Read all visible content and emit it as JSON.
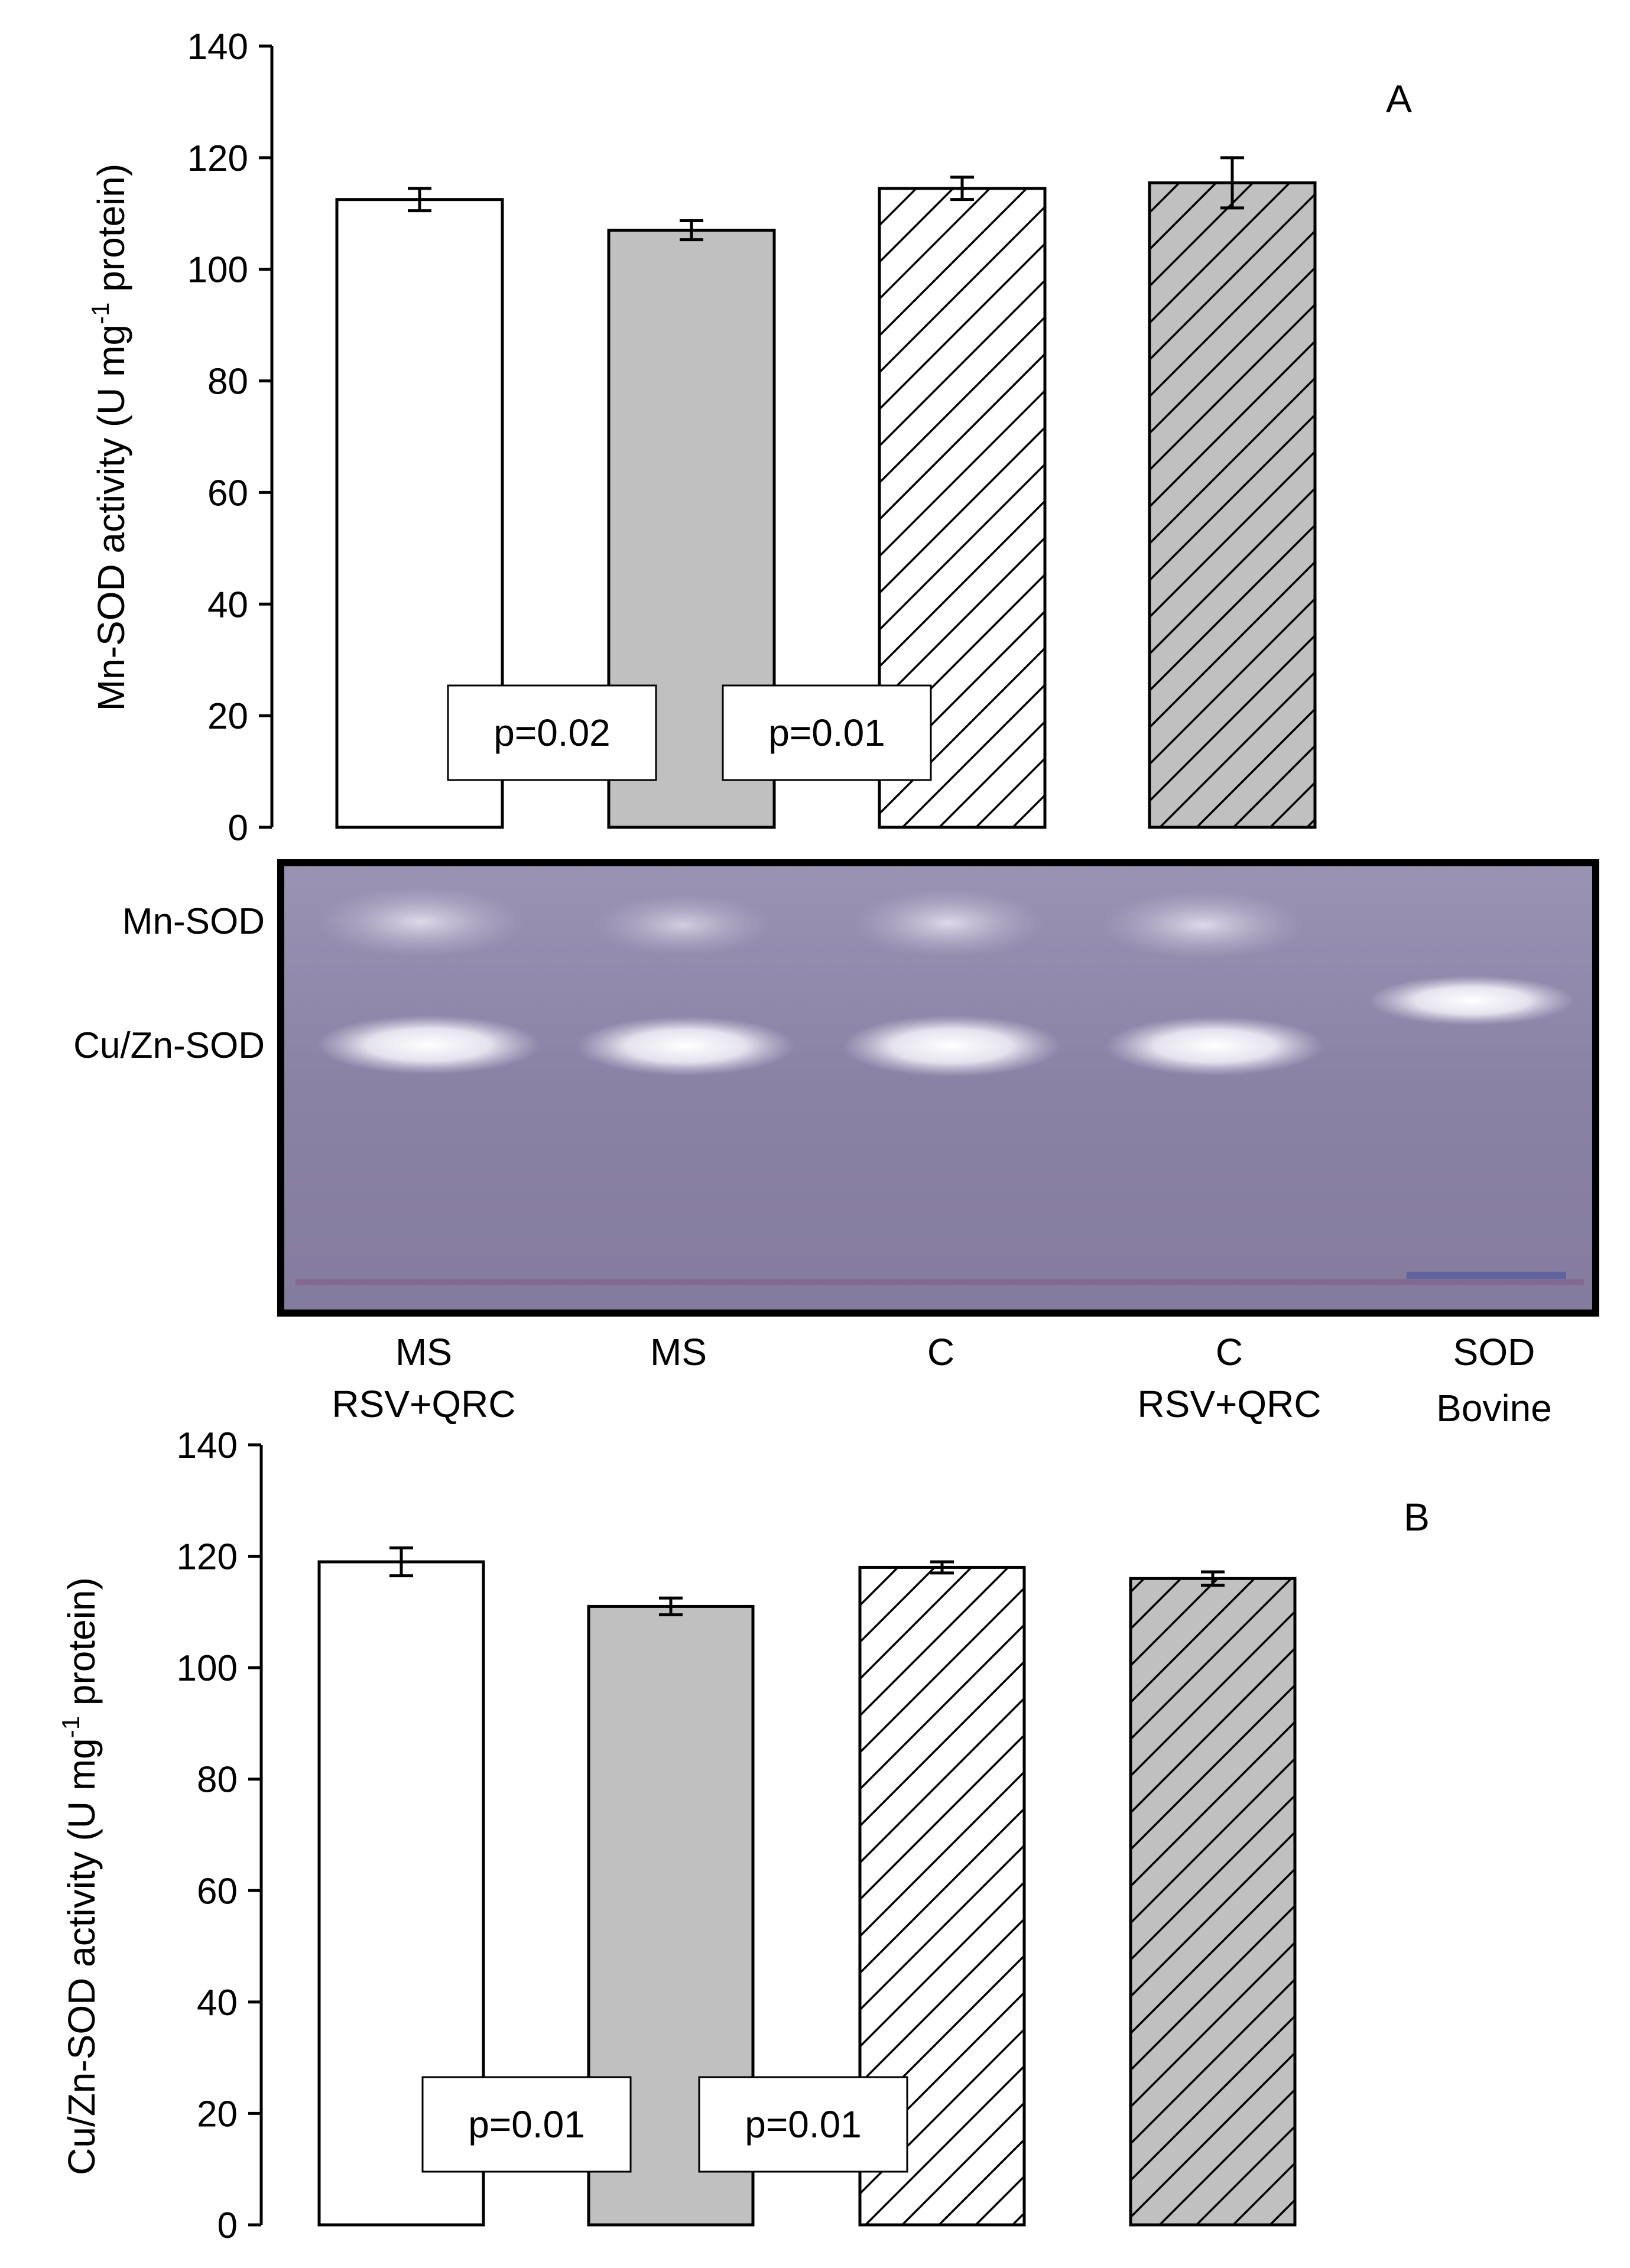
{
  "chart_data": [
    {
      "type": "bar",
      "panel_label": "A",
      "categories": [
        "MS RSV+QRC",
        "MS",
        "C",
        "C RSV+QRC"
      ],
      "values": [
        112.5,
        107,
        114.5,
        115.5
      ],
      "errors": [
        2,
        1.7,
        2,
        4.5
      ],
      "fills": [
        "#ffffff",
        "#c0c0c0",
        "hatch-white",
        "hatch-gray"
      ],
      "ylabel_main": "Mn-SOD activity (U mg",
      "ylabel_sup": "-1",
      "ylabel_end": " protein)",
      "ylim": [
        0,
        140
      ],
      "yticks": [
        0,
        20,
        40,
        60,
        80,
        100,
        120,
        140
      ],
      "annotations": [
        "p=0.02",
        "p=0.01"
      ],
      "grid": false
    },
    {
      "type": "bar",
      "panel_label": "B",
      "categories": [
        "MS RSV+QRC",
        "MS",
        "C",
        "C RSV+QRC"
      ],
      "values": [
        119,
        111,
        118,
        116
      ],
      "errors": [
        2.5,
        1.5,
        1,
        1.2
      ],
      "fills": [
        "#ffffff",
        "#c0c0c0",
        "hatch-white",
        "hatch-gray"
      ],
      "ylabel_main": "Cu/Zn-SOD activity (U mg",
      "ylabel_sup": "-1",
      "ylabel_end": " protein)",
      "ylim": [
        0,
        140
      ],
      "yticks": [
        0,
        20,
        40,
        60,
        80,
        100,
        120,
        140
      ],
      "annotations": [
        "p=0.01",
        "p=0.01"
      ],
      "grid": false
    }
  ],
  "gel": {
    "band_labels": [
      "Mn-SOD",
      "Cu/Zn-SOD"
    ],
    "lanes": [
      {
        "line1": "MS",
        "line2": "RSV+QRC"
      },
      {
        "line1": "MS",
        "line2": ""
      },
      {
        "line1": "C",
        "line2": ""
      },
      {
        "line1": "C",
        "line2": "RSV+QRC"
      },
      {
        "line1": "SOD",
        "line2": "Bovine"
      }
    ]
  },
  "colors": {
    "axis": "#000000",
    "bar_gray": "#c0c0c0",
    "gel_background": "#8b83a6",
    "gel_border": "#000000"
  }
}
